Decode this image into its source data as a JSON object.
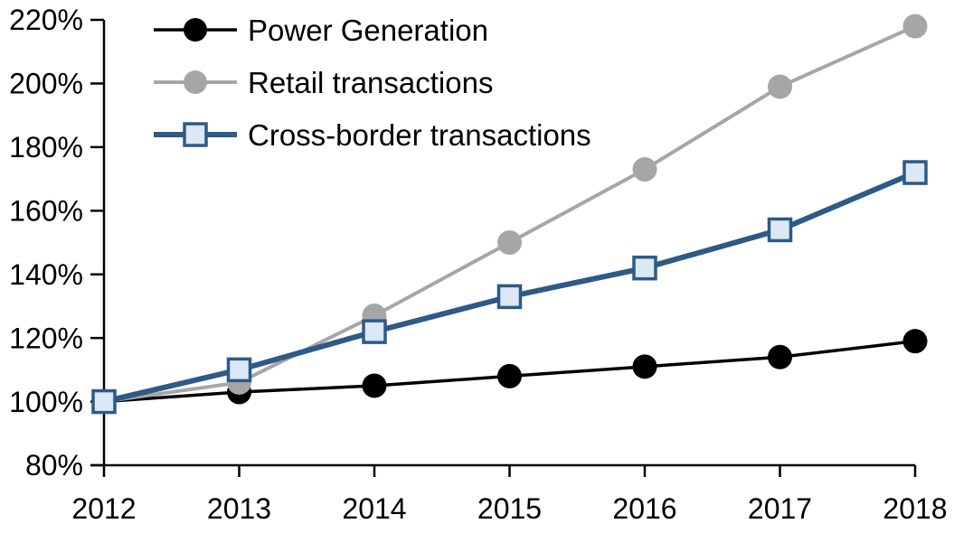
{
  "page": {
    "background": "#FFFFFF",
    "axis_color": "#000000",
    "text_color": "#000000"
  },
  "chart_data": {
    "type": "line",
    "title": "",
    "xlabel": "",
    "ylabel": "",
    "x": [
      "2012",
      "2013",
      "2014",
      "2015",
      "2016",
      "2017",
      "2018"
    ],
    "series": [
      {
        "name": "Power Generation",
        "values": [
          100,
          103,
          105,
          108,
          111,
          114,
          119
        ],
        "color": "#000000",
        "marker": "circle",
        "marker_fill": "#000000",
        "marker_size": 13.5,
        "line_width": 3.5
      },
      {
        "name": "Retail transactions",
        "values": [
          100,
          106,
          127,
          150,
          173,
          199,
          218
        ],
        "color": "#A6A6A6",
        "marker": "circle",
        "marker_fill": "#A6A6A6",
        "marker_size": 13.5,
        "line_width": 4
      },
      {
        "name": "Cross-border transactions",
        "values": [
          100,
          110,
          122,
          133,
          142,
          154,
          172
        ],
        "color": "#2D5A87",
        "marker": "square",
        "marker_fill": "#DCE8F5",
        "marker_size": 24,
        "marker_stroke_width": 3.5,
        "line_width": 6
      }
    ],
    "ylim": [
      80,
      220
    ],
    "y_tick_values": [
      220,
      200,
      180,
      160,
      140,
      120,
      100,
      80
    ],
    "y_ticks": [
      "220%",
      "200%",
      "180%",
      "160%",
      "140%",
      "120%",
      "100%",
      "80%"
    ],
    "x_ticks": [
      "2012",
      "2013",
      "2014",
      "2015",
      "2016",
      "2017",
      "2018"
    ],
    "grid": false,
    "legend_position": "top-left-inside"
  }
}
